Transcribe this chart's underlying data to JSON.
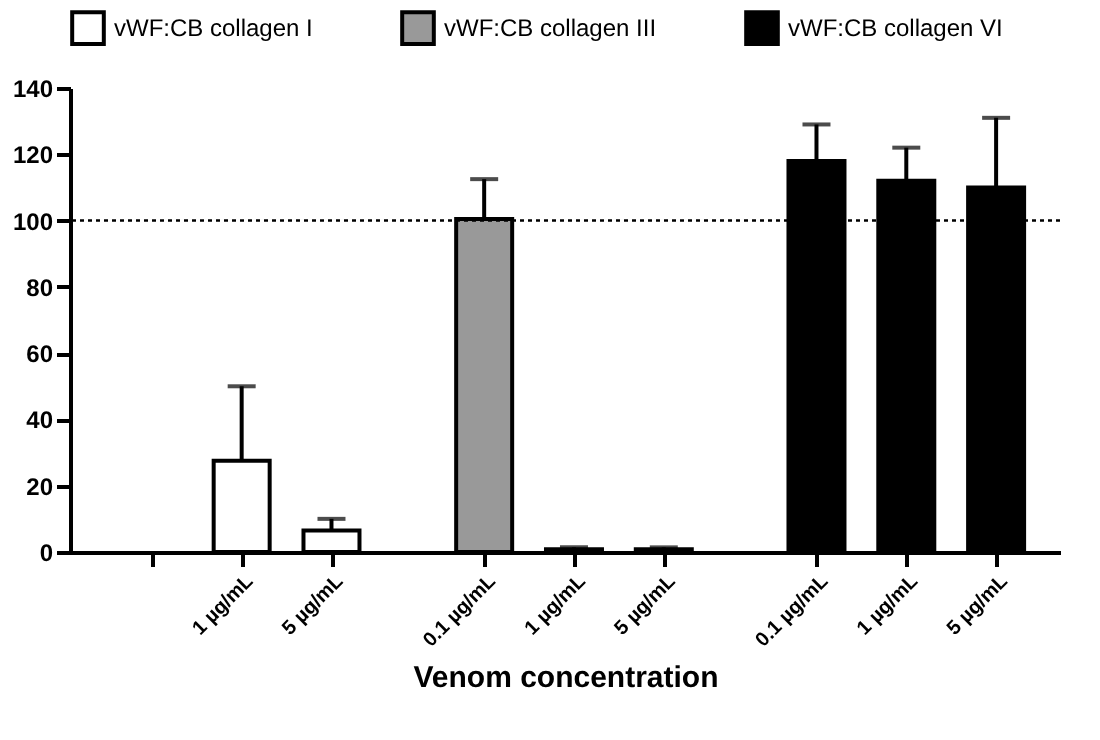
{
  "chart_data": {
    "type": "bar",
    "xlabel": "Venom concentration",
    "categories": [
      null,
      "1 µg/mL",
      "5 µg/mL",
      "0.1 µg/mL",
      "1 µg/mL",
      "5 µg/mL",
      "0.1 µg/mL",
      "1 µg/mL",
      "5 µg/mL"
    ],
    "series": [
      {
        "name": "vWF:CB collagen I",
        "color": "#ffffff",
        "values": [
          null,
          27.5,
          6.5,
          null,
          null,
          null,
          null,
          null,
          null
        ],
        "errors": [
          null,
          22.5,
          3.5,
          null,
          null,
          null,
          null,
          null,
          null
        ]
      },
      {
        "name": "vWF:CB collagen III",
        "color": "#999999",
        "values": [
          null,
          null,
          null,
          100.5,
          0.8,
          0.8,
          null,
          null,
          null
        ],
        "errors": [
          null,
          null,
          null,
          12,
          0.6,
          0.6,
          null,
          null,
          null
        ]
      },
      {
        "name": "vWF:CB collagen VI",
        "color": "#000000",
        "values": [
          null,
          null,
          null,
          null,
          null,
          null,
          118,
          112,
          110
        ],
        "errors": [
          null,
          null,
          null,
          null,
          null,
          null,
          11,
          10,
          21
        ]
      }
    ],
    "ylim": [
      0,
      140
    ],
    "yticks": [
      0,
      20,
      40,
      60,
      80,
      100,
      120,
      140
    ],
    "ref_lines": [
      {
        "axis": "y",
        "value": 100,
        "line_style": "dotted"
      }
    ],
    "grid": false,
    "legend": "top"
  }
}
